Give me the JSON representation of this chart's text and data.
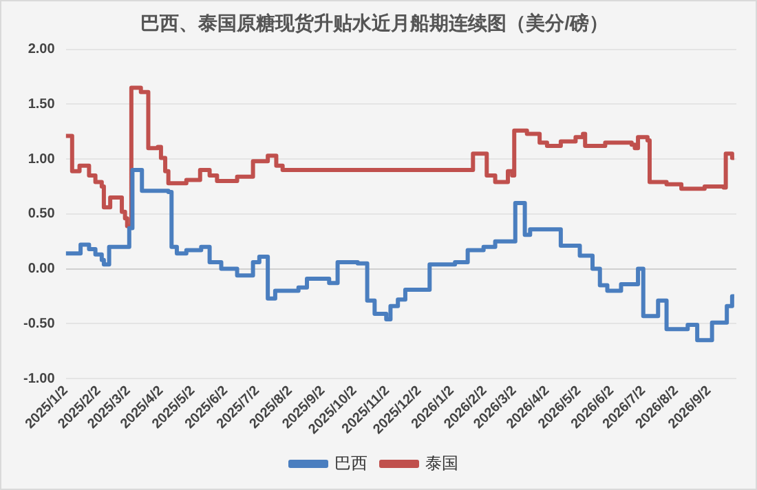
{
  "chart_data": {
    "type": "step",
    "title": "巴西、泰国原糖现货升贴水近月船期连续图（美分/磅）",
    "xlim": [
      "2025-01-02",
      "2026-09-28"
    ],
    "xticks": [
      {
        "value": "2025-01-02",
        "label": "2025/1/2"
      },
      {
        "value": "2025-02-02",
        "label": "2025/2/2"
      },
      {
        "value": "2025-03-02",
        "label": "2025/3/2"
      },
      {
        "value": "2025-04-02",
        "label": "2025/4/2"
      },
      {
        "value": "2025-05-02",
        "label": "2025/5/2"
      },
      {
        "value": "2025-06-02",
        "label": "2025/6/2"
      },
      {
        "value": "2025-07-02",
        "label": "2025/7/2"
      },
      {
        "value": "2025-08-02",
        "label": "2025/8/2"
      },
      {
        "value": "2025-09-02",
        "label": "2025/9/2"
      },
      {
        "value": "2025-10-02",
        "label": "2025/10/2"
      },
      {
        "value": "2025-11-02",
        "label": "2025/11/2"
      },
      {
        "value": "2025-12-02",
        "label": "2025/12/2"
      },
      {
        "value": "2026-01-02",
        "label": "2026/1/2"
      },
      {
        "value": "2026-02-02",
        "label": "2026/2/2"
      },
      {
        "value": "2026-03-02",
        "label": "2026/3/2"
      },
      {
        "value": "2026-04-02",
        "label": "2026/4/2"
      },
      {
        "value": "2026-05-02",
        "label": "2026/5/2"
      },
      {
        "value": "2026-06-02",
        "label": "2026/6/2"
      },
      {
        "value": "2026-07-02",
        "label": "2026/7/2"
      },
      {
        "value": "2026-08-02",
        "label": "2026/8/2"
      },
      {
        "value": "2026-09-02",
        "label": "2026/9/2"
      }
    ],
    "ylim": [
      -1,
      2
    ],
    "yticks": [
      {
        "value": -1,
        "label": "-1.00"
      },
      {
        "value": -0.5,
        "label": "-0.50"
      },
      {
        "value": 0,
        "label": "0.00"
      },
      {
        "value": 0.5,
        "label": "0.50"
      },
      {
        "value": 1,
        "label": "1.00"
      },
      {
        "value": 1.5,
        "label": "1.50"
      },
      {
        "value": 2,
        "label": "2.00"
      }
    ],
    "grid": "y",
    "legend": "bottom",
    "line_style": "solid",
    "marker": "none",
    "series": [
      {
        "name": "巴西",
        "color": "#4a7ebf",
        "x": [
          "2025-01-02",
          "2025-01-16",
          "2025-01-24",
          "2025-01-30",
          "2025-02-05",
          "2025-02-07",
          "2025-02-12",
          "2025-03-03",
          "2025-03-06",
          "2025-03-15",
          "2025-04-09",
          "2025-04-12",
          "2025-04-17",
          "2025-04-26",
          "2025-05-10",
          "2025-05-18",
          "2025-05-29",
          "2025-06-13",
          "2025-06-28",
          "2025-07-04",
          "2025-07-12",
          "2025-07-19",
          "2025-08-10",
          "2025-08-18",
          "2025-09-08",
          "2025-09-16",
          "2025-10-05",
          "2025-10-14",
          "2025-10-21",
          "2025-11-01",
          "2025-11-05",
          "2025-11-12",
          "2025-11-19",
          "2025-12-12",
          "2026-01-05",
          "2026-01-17",
          "2026-02-01",
          "2026-02-12",
          "2026-03-03",
          "2026-03-12",
          "2026-03-17",
          "2026-04-15",
          "2026-05-03",
          "2026-05-15",
          "2026-05-22",
          "2026-05-29",
          "2026-06-11",
          "2026-06-27",
          "2026-07-02",
          "2026-07-16",
          "2026-07-24",
          "2026-08-13",
          "2026-08-22",
          "2026-09-05",
          "2026-09-19",
          "2026-09-24",
          "2026-09-26"
        ],
        "values": [
          0.14,
          0.22,
          0.18,
          0.13,
          0.08,
          0.04,
          0.2,
          0.37,
          0.9,
          0.71,
          0.7,
          0.2,
          0.14,
          0.17,
          0.2,
          0.06,
          0,
          -0.06,
          0.06,
          0.11,
          -0.27,
          -0.2,
          -0.17,
          -0.09,
          -0.13,
          0.06,
          0.05,
          -0.29,
          -0.41,
          -0.46,
          -0.34,
          -0.28,
          -0.19,
          0.04,
          0.06,
          0.17,
          0.2,
          0.25,
          0.6,
          0.31,
          0.36,
          0.21,
          0.12,
          0,
          -0.15,
          -0.2,
          -0.14,
          0,
          -0.43,
          -0.29,
          -0.55,
          -0.51,
          -0.65,
          -0.49,
          -0.34,
          -0.25,
          -0.25
        ]
      },
      {
        "name": "泰国",
        "color": "#c0504d",
        "x": [
          "2025-01-02",
          "2025-01-08",
          "2025-01-15",
          "2025-01-24",
          "2025-01-30",
          "2025-02-05",
          "2025-02-07",
          "2025-02-13",
          "2025-02-24",
          "2025-02-27",
          "2025-03-01",
          "2025-03-05",
          "2025-03-14",
          "2025-03-21",
          "2025-03-30",
          "2025-04-02",
          "2025-04-06",
          "2025-04-09",
          "2025-04-26",
          "2025-05-09",
          "2025-05-18",
          "2025-05-25",
          "2025-06-13",
          "2025-06-28",
          "2025-07-12",
          "2025-07-20",
          "2025-07-26",
          "2026-01-22",
          "2026-02-04",
          "2026-02-12",
          "2026-02-24",
          "2026-02-28",
          "2026-03-02",
          "2026-03-14",
          "2026-03-26",
          "2026-04-02",
          "2026-04-15",
          "2026-04-29",
          "2026-05-06",
          "2026-05-08",
          "2026-05-27",
          "2026-06-21",
          "2026-06-24",
          "2026-06-27",
          "2026-07-06",
          "2026-07-08",
          "2026-07-24",
          "2026-08-07",
          "2026-08-29",
          "2026-09-16",
          "2026-09-18",
          "2026-09-24",
          "2026-09-26"
        ],
        "values": [
          1.21,
          0.89,
          0.94,
          0.85,
          0.79,
          0.75,
          0.56,
          0.65,
          0.52,
          0.46,
          0.39,
          1.65,
          1.61,
          1.1,
          1.11,
          1.01,
          0.89,
          0.78,
          0.81,
          0.9,
          0.85,
          0.8,
          0.84,
          0.98,
          1.03,
          0.94,
          0.9,
          1.05,
          0.85,
          0.79,
          0.89,
          0.85,
          1.26,
          1.23,
          1.15,
          1.12,
          1.16,
          1.2,
          1.23,
          1.12,
          1.15,
          1.13,
          1.1,
          1.2,
          1.17,
          0.79,
          0.77,
          0.73,
          0.75,
          0.74,
          1.05,
          1.01,
          1.01
        ]
      }
    ]
  }
}
